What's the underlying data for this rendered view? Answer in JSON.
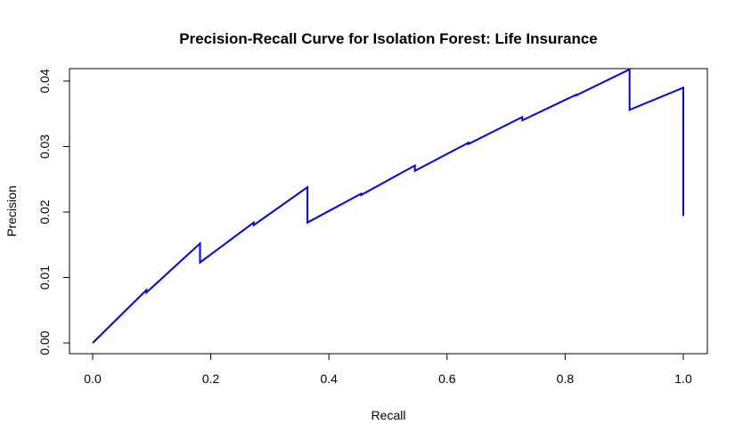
{
  "chart_data": {
    "type": "line",
    "title": "Precision-Recall Curve for Isolation Forest: Life Insurance",
    "xlabel": "Recall",
    "ylabel": "Precision",
    "xlim": [
      0.0,
      1.0
    ],
    "ylim": [
      0.0,
      0.042
    ],
    "xticks": [
      "0.0",
      "0.2",
      "0.4",
      "0.6",
      "0.8",
      "1.0"
    ],
    "yticks": [
      "0.00",
      "0.01",
      "0.02",
      "0.03",
      "0.04"
    ],
    "grid": false,
    "line_color": "#0000ee",
    "series": [
      {
        "x": [
          0.0,
          0.0909,
          0.0909,
          0.1818,
          0.1818,
          0.2727,
          0.2727,
          0.3636,
          0.3636,
          0.4545,
          0.4545,
          0.5455,
          0.5455,
          0.6364,
          0.6364,
          0.7273,
          0.7273,
          0.8182,
          0.8182,
          0.9091,
          0.9091,
          1.0,
          1.0
        ],
        "y": [
          0.0,
          0.0081,
          0.0077,
          0.0152,
          0.0123,
          0.0184,
          0.018,
          0.0238,
          0.0184,
          0.0228,
          0.0226,
          0.0271,
          0.0263,
          0.0306,
          0.0304,
          0.0345,
          0.034,
          0.0379,
          0.0378,
          0.0418,
          0.0356,
          0.039,
          0.0194
        ]
      }
    ]
  }
}
